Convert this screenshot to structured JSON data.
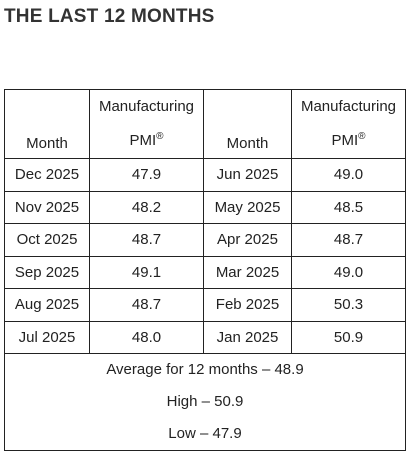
{
  "title": "THE LAST 12 MONTHS",
  "table": {
    "header": [
      {
        "label": "Month"
      },
      {
        "lines": [
          "Manufacturing",
          "PMI"
        ],
        "sup": "®"
      },
      {
        "label": "Month"
      },
      {
        "lines": [
          "Manufacturing",
          "PMI"
        ],
        "sup": "®"
      }
    ],
    "rows": [
      [
        "Dec 2025",
        "47.9",
        "Jun 2025",
        "49.0"
      ],
      [
        "Nov 2025",
        "48.2",
        "May 2025",
        "48.5"
      ],
      [
        "Oct 2025",
        "48.7",
        "Apr 2025",
        "48.7"
      ],
      [
        "Sep 2025",
        "49.1",
        "Mar 2025",
        "49.0"
      ],
      [
        "Aug 2025",
        "48.7",
        "Feb 2025",
        "50.3"
      ],
      [
        "Jul 2025",
        "48.0",
        "Jan 2025",
        "50.9"
      ]
    ],
    "footer": [
      "Average for 12 months – 48.9",
      "High – 50.9",
      "Low – 47.9"
    ]
  }
}
